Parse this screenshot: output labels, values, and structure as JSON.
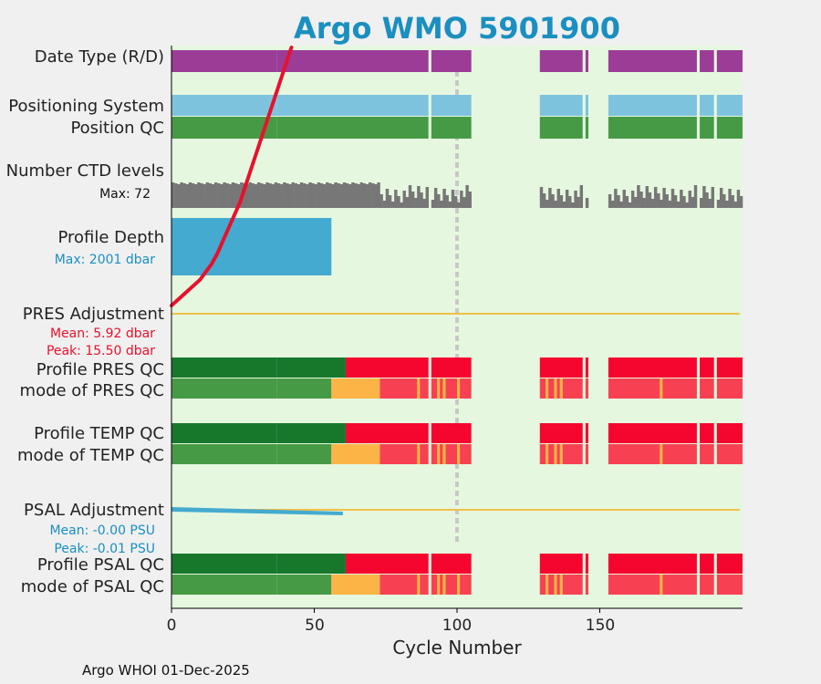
{
  "chart_data": {
    "type": "bar",
    "title": "Argo WMO 5901900",
    "xlabel": "Cycle Number",
    "xlim": [
      0,
      200
    ],
    "xticks": [
      "0",
      "50",
      "100",
      "150"
    ],
    "footer": "Argo WHOI 01-Dec-2025",
    "rows": {
      "date_type": "Date Type (R/D)",
      "positioning": "Positioning System",
      "position_qc": "Position QC",
      "ctd_levels": "Number CTD levels",
      "ctd_max": "Max: 72",
      "profile_depth": "Profile Depth",
      "depth_max": "Max: 2001 dbar",
      "pres_adj": "PRES Adjustment",
      "pres_mean": "Mean: 5.92 dbar",
      "pres_peak": "Peak: 15.50 dbar",
      "profile_pres_qc": "Profile PRES QC",
      "mode_pres_qc": "mode of PRES QC",
      "profile_temp_qc": "Profile TEMP QC",
      "mode_temp_qc": "mode of TEMP QC",
      "psal_adj": "PSAL Adjustment",
      "psal_mean": "Mean: -0.00 PSU",
      "psal_peak": "Peak: -0.01 PSU",
      "profile_psal_qc": "Profile PSAL QC",
      "mode_psal_qc": "mode of PSAL QC"
    },
    "cycle_segments": [
      [
        0,
        37
      ],
      [
        37,
        73
      ],
      [
        73,
        90
      ],
      [
        91,
        105
      ],
      [
        129,
        144
      ],
      [
        145,
        146
      ],
      [
        153,
        184
      ],
      [
        185,
        190
      ],
      [
        191,
        200
      ]
    ],
    "gap": [
      105,
      129
    ],
    "marker_cycle": 100,
    "depth_full_until": 56,
    "psal_adj_until": 60,
    "profile_qc_green_until": 61,
    "mode_qc_green_until": 56,
    "mode_qc_orange_until": 73,
    "date_line": [
      [
        0,
        0.0
      ],
      [
        5,
        0.05
      ],
      [
        10,
        0.1
      ],
      [
        14,
        0.16
      ],
      [
        16,
        0.2
      ],
      [
        20,
        0.3
      ],
      [
        24,
        0.4
      ],
      [
        27,
        0.5
      ],
      [
        30,
        0.6
      ],
      [
        33,
        0.7
      ],
      [
        36,
        0.8
      ],
      [
        39,
        0.9
      ],
      [
        42,
        1.0
      ]
    ],
    "colors": {
      "background": "#e6f7df",
      "date_type": "#9b3c97",
      "positioning": "#7ec3de",
      "position_qc": "#469a46",
      "ctd": "#777777",
      "depth": "#44aad0",
      "adjustment_line": "#f0c04a",
      "psal_adj": "#44aad0",
      "qc_good_dark": "#17782c",
      "qc_good": "#469a46",
      "qc_orange": "#fdb446",
      "qc_red": "#f5062e",
      "qc_red_light": "#f74152",
      "date_line": "#e8112d",
      "title": "#1a8fc0",
      "stat_red": "#e8112d",
      "stat_blue": "#1a8fc0"
    }
  }
}
